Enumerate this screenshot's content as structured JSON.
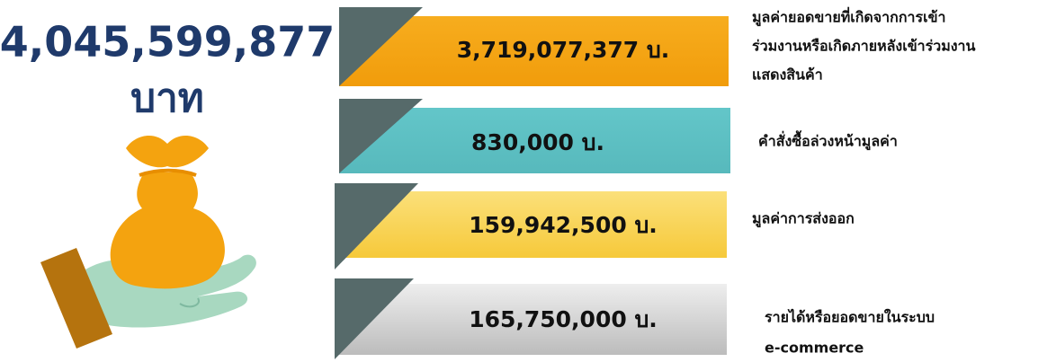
{
  "total": {
    "amount": "4,045,599,877",
    "unit": "บาท"
  },
  "items": [
    {
      "amount": "3,719,077,377 บ.",
      "description": [
        "มูลค่ายอดขายที่เกิดจากการเข้า",
        "ร่วมงานหรือเกิดภายหลังเข้าร่วมงาน",
        "แสดงสินค้า"
      ]
    },
    {
      "amount": "830,000 บ.",
      "description": [
        "คำสั่งซื้อล่วงหน้ามูลค่า"
      ]
    },
    {
      "amount": "159,942,500 บ.",
      "description": [
        "มูลค่าการส่งออก"
      ]
    },
    {
      "amount": "165,750,000 บ.",
      "description": [
        "รายได้หรือยอดขายในระบบ",
        "e-commerce"
      ]
    }
  ]
}
